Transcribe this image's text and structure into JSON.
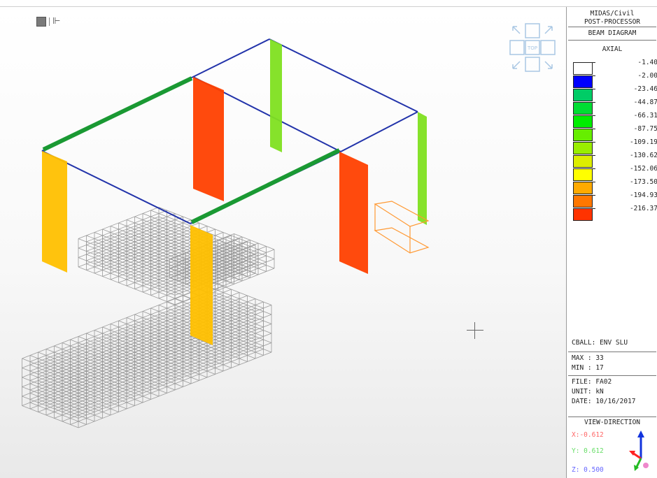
{
  "window": {
    "program_title": "MIDAS/Civil",
    "module": "POST-PROCESSOR",
    "diagram": "BEAM DIAGRAM"
  },
  "legend": {
    "component": "AXIAL",
    "entries": [
      {
        "value": "-1.40",
        "color": "#ffffff"
      },
      {
        "value": "-2.00",
        "color": "#0000ff"
      },
      {
        "value": "-23.46",
        "color": "#00cc66"
      },
      {
        "value": "-44.87",
        "color": "#00dd33"
      },
      {
        "value": "-66.31",
        "color": "#00ee00"
      },
      {
        "value": "-87.75",
        "color": "#66ee00"
      },
      {
        "value": "-109.19",
        "color": "#99ee00"
      },
      {
        "value": "-130.62",
        "color": "#ddee00"
      },
      {
        "value": "-152.06",
        "color": "#ffff00"
      },
      {
        "value": "-173.50",
        "color": "#ffaa00"
      },
      {
        "value": "-194.93",
        "color": "#ff7700"
      },
      {
        "value": "-216.37",
        "color": "#ff3300"
      }
    ]
  },
  "info": {
    "cball": "CBALL: ENV SLU",
    "max": "MAX : 33",
    "min": "MIN : 17",
    "file": "FILE: FA02",
    "unit": "UNIT: kN",
    "date": "DATE: 10/16/2017"
  },
  "view_direction": {
    "title": "VIEW-DIRECTION",
    "x": "X:-0.612",
    "y": "Y: 0.612",
    "z": "Z: 0.500"
  },
  "view_cube": {
    "top_label": "TOP"
  },
  "colors": {
    "frame": "#2233aa",
    "mesh": "#9a9a9a",
    "highlight": "#ff9933"
  }
}
